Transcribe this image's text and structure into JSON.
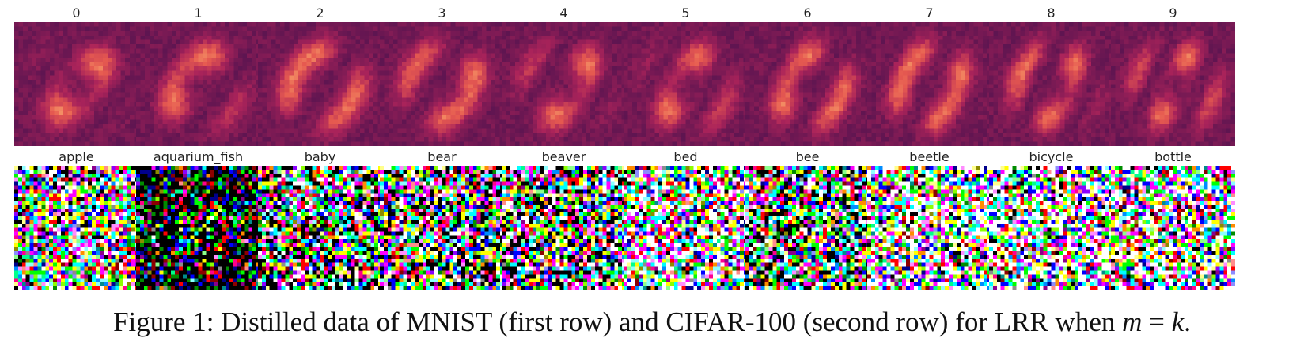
{
  "figure": {
    "rows": [
      {
        "name": "MNIST",
        "palette": "magma",
        "labels": [
          "0",
          "1",
          "2",
          "3",
          "4",
          "5",
          "6",
          "7",
          "8",
          "9"
        ]
      },
      {
        "name": "CIFAR-100",
        "palette": "rgb-noise",
        "labels": [
          "apple",
          "aquarium_fish",
          "baby",
          "bear",
          "beaver",
          "bed",
          "bee",
          "beetle",
          "bicycle",
          "bottle"
        ]
      }
    ],
    "caption": {
      "prefix": "Figure 1: Distilled data of MNIST (first row) and CIFAR-100 (second row) for LRR when ",
      "m": "m",
      "eq": " = ",
      "k": "k",
      "suffix": "."
    }
  }
}
